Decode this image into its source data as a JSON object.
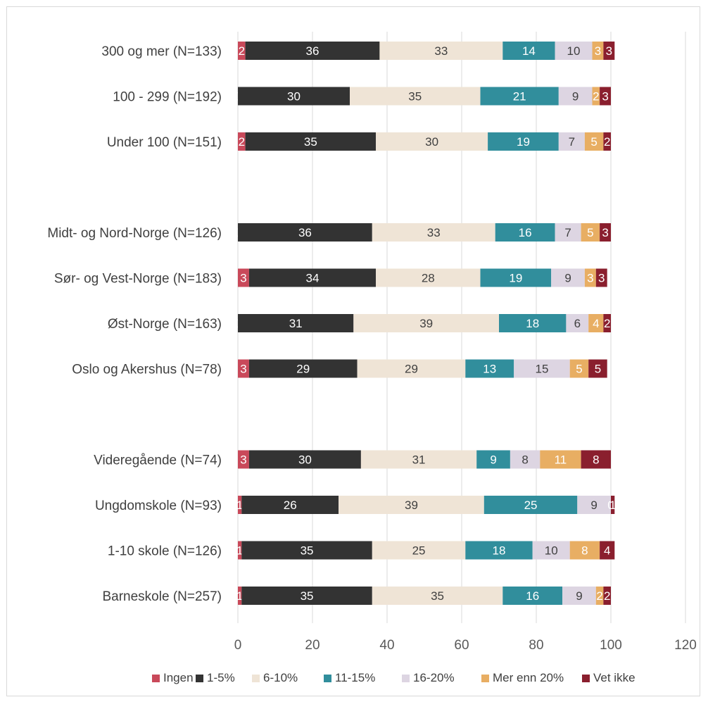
{
  "chart_data": {
    "type": "bar",
    "orientation": "horizontal",
    "stacked": true,
    "xlim": [
      0,
      120
    ],
    "xticks": [
      0,
      20,
      40,
      60,
      80,
      100,
      120
    ],
    "grid": true,
    "legend_position": "bottom",
    "categories": [
      "300 og mer (N=133)",
      "100 - 299 (N=192)",
      "Under 100 (N=151)",
      "",
      "Midt- og Nord-Norge (N=126)",
      "Sør- og Vest-Norge (N=183)",
      "Øst-Norge (N=163)",
      "Oslo og Akershus (N=78)",
      "",
      "Videregående (N=74)",
      "Ungdomskole (N=93)",
      "1-10 skole (N=126)",
      "Barneskole (N=257)"
    ],
    "series": [
      {
        "name": "Ingen",
        "color": "#c9495a",
        "label_color": "#ffffff",
        "values": [
          2,
          0,
          2,
          null,
          0,
          3,
          0,
          3,
          null,
          3,
          1,
          1,
          1
        ]
      },
      {
        "name": "1-5%",
        "color": "#333333",
        "label_color": "#ffffff",
        "values": [
          36,
          30,
          35,
          null,
          36,
          34,
          31,
          29,
          null,
          30,
          26,
          35,
          35
        ]
      },
      {
        "name": "6-10%",
        "color": "#efe4d6",
        "label_color": "#404040",
        "values": [
          33,
          35,
          30,
          null,
          33,
          28,
          39,
          29,
          null,
          31,
          39,
          25,
          35
        ]
      },
      {
        "name": "11-15%",
        "color": "#318e9c",
        "label_color": "#ffffff",
        "values": [
          14,
          21,
          19,
          null,
          16,
          19,
          18,
          13,
          null,
          9,
          25,
          18,
          16
        ]
      },
      {
        "name": "16-20%",
        "color": "#ddd5e2",
        "label_color": "#404040",
        "values": [
          10,
          9,
          7,
          null,
          7,
          9,
          6,
          15,
          null,
          8,
          9,
          10,
          9
        ]
      },
      {
        "name": "Mer enn 20%",
        "color": "#e8ae63",
        "label_color": "#ffffff",
        "values": [
          3,
          2,
          5,
          null,
          5,
          3,
          4,
          5,
          null,
          11,
          0,
          8,
          2
        ]
      },
      {
        "name": "Vet ikke",
        "color": "#8a1f2e",
        "label_color": "#ffffff",
        "values": [
          3,
          3,
          2,
          null,
          3,
          3,
          2,
          5,
          null,
          8,
          1,
          4,
          2
        ]
      }
    ]
  }
}
